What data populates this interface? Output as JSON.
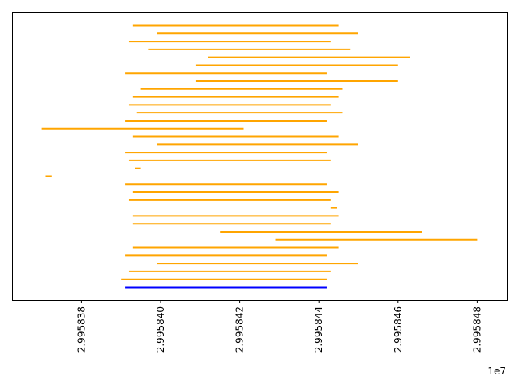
{
  "chart_data": {
    "type": "interval",
    "title": "",
    "xlabel": "",
    "ylabel": "",
    "x_offset_label": "1e7",
    "xlim": [
      29958362.5,
      29958487.5
    ],
    "xticks": [
      29958380,
      29958400,
      29958420,
      29958440,
      29958460,
      29958480
    ],
    "xtick_labels": [
      "2.995838",
      "2.995840",
      "2.995842",
      "2.995844",
      "2.995846",
      "2.995848"
    ],
    "xtick_label_rotation": 90,
    "yaxis_visible": false,
    "grid": false,
    "colors": {
      "default": "#ffa500",
      "highlight": "#0000ff"
    },
    "segments": [
      {
        "start": 29958391.0,
        "end": 29958442.0,
        "color": "#0000ff"
      },
      {
        "start": 29958390.0,
        "end": 29958442.0,
        "color": "#ffa500"
      },
      {
        "start": 29958392.0,
        "end": 29958443.0,
        "color": "#ffa500"
      },
      {
        "start": 29958399.0,
        "end": 29958450.0,
        "color": "#ffa500"
      },
      {
        "start": 29958391.0,
        "end": 29958442.0,
        "color": "#ffa500"
      },
      {
        "start": 29958393.0,
        "end": 29958445.0,
        "color": "#ffa500"
      },
      {
        "start": 29958429.0,
        "end": 29958480.0,
        "color": "#ffa500"
      },
      {
        "start": 29958415.0,
        "end": 29958466.0,
        "color": "#ffa500"
      },
      {
        "start": 29958393.0,
        "end": 29958443.0,
        "color": "#ffa500"
      },
      {
        "start": 29958393.0,
        "end": 29958445.0,
        "color": "#ffa500"
      },
      {
        "start": 29958443.0,
        "end": 29958444.5,
        "color": "#ffa500"
      },
      {
        "start": 29958392.0,
        "end": 29958443.0,
        "color": "#ffa500"
      },
      {
        "start": 29958393.0,
        "end": 29958445.0,
        "color": "#ffa500"
      },
      {
        "start": 29958391.0,
        "end": 29958442.0,
        "color": "#ffa500"
      },
      {
        "start": 29958371.0,
        "end": 29958372.5,
        "color": "#ffa500"
      },
      {
        "start": 29958393.5,
        "end": 29958395.0,
        "color": "#ffa500"
      },
      {
        "start": 29958392.0,
        "end": 29958443.0,
        "color": "#ffa500"
      },
      {
        "start": 29958391.0,
        "end": 29958442.0,
        "color": "#ffa500"
      },
      {
        "start": 29958399.0,
        "end": 29958450.0,
        "color": "#ffa500"
      },
      {
        "start": 29958393.0,
        "end": 29958445.0,
        "color": "#ffa500"
      },
      {
        "start": 29958370.0,
        "end": 29958421.0,
        "color": "#ffa500"
      },
      {
        "start": 29958391.0,
        "end": 29958442.0,
        "color": "#ffa500"
      },
      {
        "start": 29958394.0,
        "end": 29958446.0,
        "color": "#ffa500"
      },
      {
        "start": 29958392.0,
        "end": 29958443.0,
        "color": "#ffa500"
      },
      {
        "start": 29958393.0,
        "end": 29958445.0,
        "color": "#ffa500"
      },
      {
        "start": 29958395.0,
        "end": 29958446.0,
        "color": "#ffa500"
      },
      {
        "start": 29958409.0,
        "end": 29958460.0,
        "color": "#ffa500"
      },
      {
        "start": 29958391.0,
        "end": 29958442.0,
        "color": "#ffa500"
      },
      {
        "start": 29958409.0,
        "end": 29958460.0,
        "color": "#ffa500"
      },
      {
        "start": 29958412.0,
        "end": 29958463.0,
        "color": "#ffa500"
      },
      {
        "start": 29958397.0,
        "end": 29958448.0,
        "color": "#ffa500"
      },
      {
        "start": 29958392.0,
        "end": 29958443.0,
        "color": "#ffa500"
      },
      {
        "start": 29958399.0,
        "end": 29958450.0,
        "color": "#ffa500"
      },
      {
        "start": 29958393.0,
        "end": 29958445.0,
        "color": "#ffa500"
      }
    ]
  }
}
